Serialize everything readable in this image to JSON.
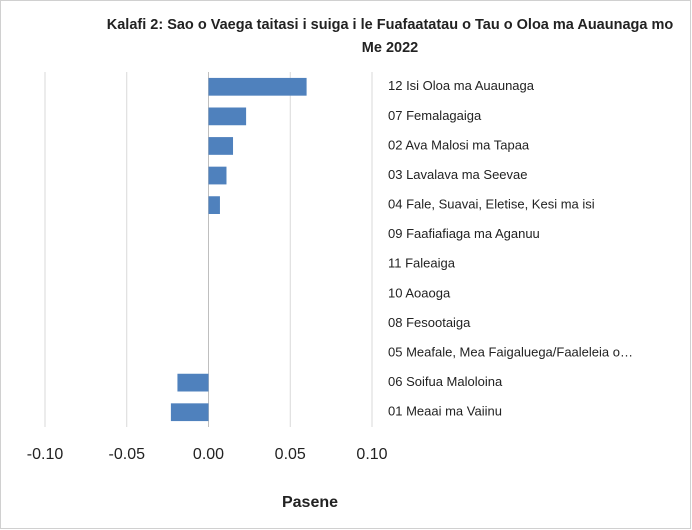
{
  "chart_data": {
    "type": "barh",
    "title": "Kalafi 2: Sao o Vaega taitasi i suiga i le Fuafaatatau o Tau o Oloa ma Auaunaga mo Me 2022",
    "xlabel": "Pasene",
    "categories": [
      "12 Isi Oloa ma Auaunaga",
      "07 Femalagaiga",
      "02 Ava Malosi ma Tapaa",
      "03 Lavalava ma Seevae",
      "04 Fale, Suavai, Eletise, Kesi ma isi",
      "09 Faafiafiaga ma Aganuu",
      "11 Faleaiga",
      "10 Aoaoga",
      "08 Fesootaiga",
      "05 Meafale, Mea Faigaluega/Faaleleia o…",
      "06 Soifua Maloloina",
      "01 Meaai ma Vaiinu"
    ],
    "values": [
      0.06,
      0.023,
      0.015,
      0.011,
      0.007,
      0,
      0,
      0,
      0,
      0,
      -0.019,
      -0.023
    ],
    "color": "#4f81bd",
    "xlim": [
      -0.1,
      0.1
    ],
    "xticks": [
      {
        "value": -0.1,
        "label": "-0.10"
      },
      {
        "value": -0.05,
        "label": "-0.05"
      },
      {
        "value": 0,
        "label": "0.00"
      },
      {
        "value": 0.05,
        "label": "0.05"
      },
      {
        "value": 0.1,
        "label": "0.10"
      }
    ],
    "grid": true
  }
}
